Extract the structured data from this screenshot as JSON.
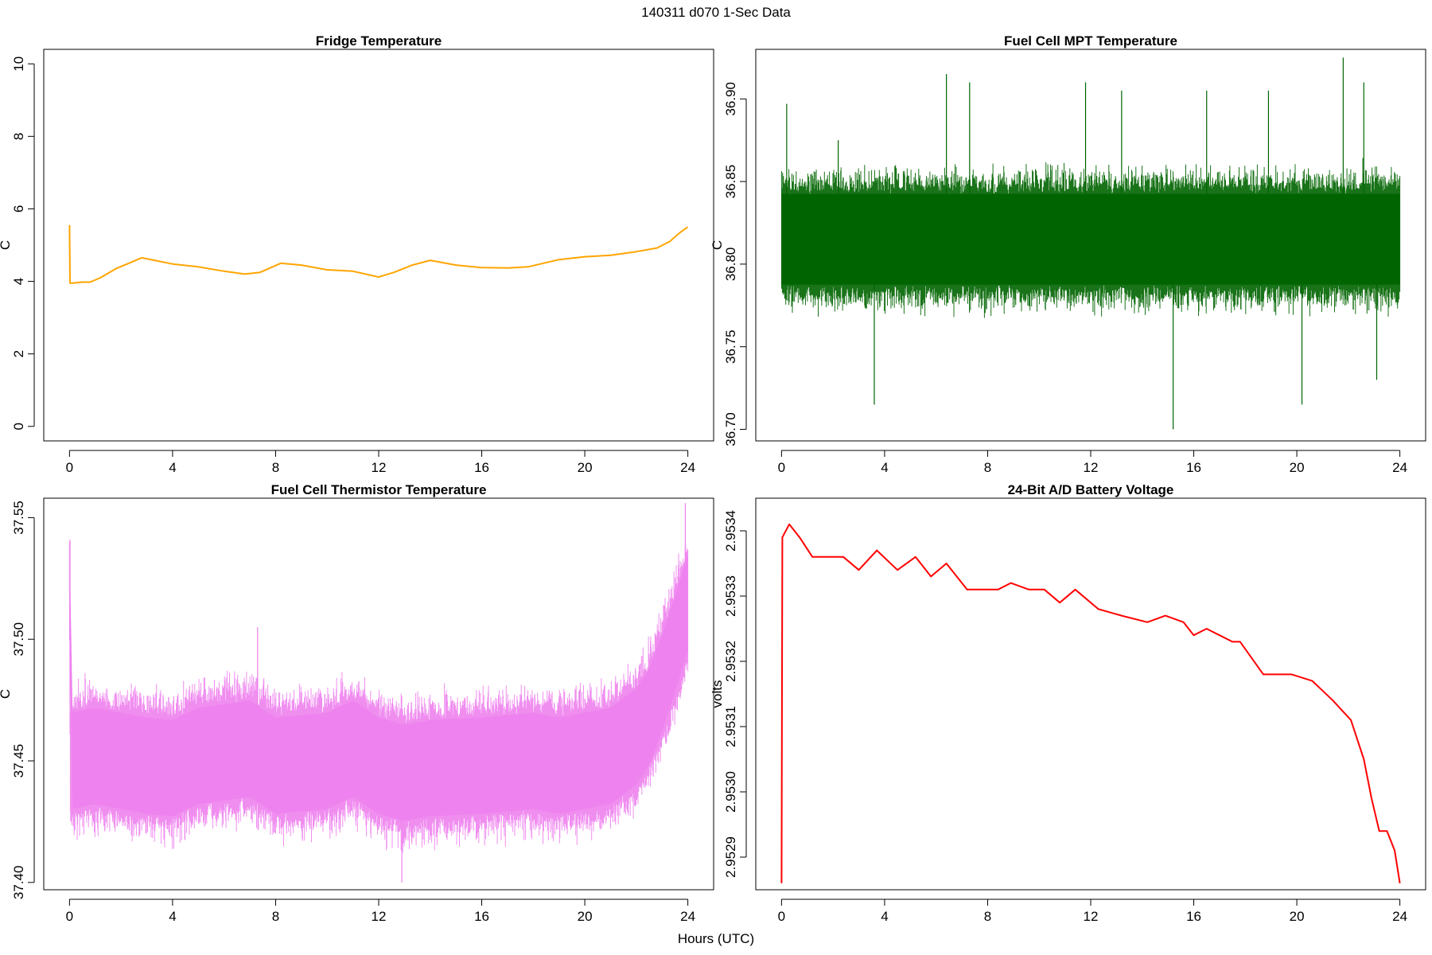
{
  "header": {
    "title": "140311   d070   1-Sec Data"
  },
  "footer": {
    "xlabel": "Hours (UTC)"
  },
  "chart_data": [
    {
      "type": "line",
      "title": "Fridge Temperature",
      "xlabel": "Hours (UTC)",
      "ylabel": "C",
      "color": "#FFA500",
      "xlim": [
        -1,
        25
      ],
      "ylim": [
        -0.4,
        10.4
      ],
      "xticks": [
        0,
        4,
        8,
        12,
        16,
        20,
        24
      ],
      "yticks": [
        0,
        2,
        4,
        6,
        8,
        10
      ],
      "ytick_labels": [
        "0",
        "2",
        "4",
        "6",
        "8",
        "10"
      ],
      "noise": 0,
      "x": [
        0,
        0.02,
        0.1,
        0.5,
        0.8,
        1.2,
        1.8,
        2.3,
        2.8,
        3.3,
        4,
        5,
        6,
        6.8,
        7.4,
        8.2,
        9,
        10,
        11,
        12,
        12.6,
        13.3,
        14,
        15,
        16,
        17,
        17.8,
        19,
        20,
        21,
        22,
        22.8,
        23.3,
        23.7,
        24
      ],
      "values": [
        5.55,
        3.95,
        3.95,
        3.98,
        3.98,
        4.1,
        4.35,
        4.5,
        4.65,
        4.58,
        4.48,
        4.4,
        4.28,
        4.2,
        4.25,
        4.5,
        4.45,
        4.32,
        4.28,
        4.12,
        4.25,
        4.45,
        4.58,
        4.45,
        4.38,
        4.37,
        4.4,
        4.6,
        4.68,
        4.72,
        4.82,
        4.92,
        5.1,
        5.35,
        5.5
      ]
    },
    {
      "type": "line",
      "title": "Fuel Cell MPT Temperature",
      "xlabel": "Hours (UTC)",
      "ylabel": "C",
      "color": "#006400",
      "xlim": [
        -1,
        25
      ],
      "ylim": [
        36.693,
        36.93
      ],
      "xticks": [
        0,
        4,
        8,
        12,
        16,
        20,
        24
      ],
      "yticks": [
        36.7,
        36.75,
        36.8,
        36.85,
        36.9
      ],
      "ytick_labels": [
        "36.70",
        "36.75",
        "36.80",
        "36.85",
        "36.90"
      ],
      "noise": 0.05,
      "x": [
        0,
        24
      ],
      "values": [
        36.815,
        36.815
      ],
      "spikes": [
        {
          "x": 0.2,
          "v": 36.897
        },
        {
          "x": 2.2,
          "v": 36.875
        },
        {
          "x": 3.6,
          "v": 36.715
        },
        {
          "x": 6.4,
          "v": 36.915
        },
        {
          "x": 7.3,
          "v": 36.91
        },
        {
          "x": 11.8,
          "v": 36.91
        },
        {
          "x": 13.2,
          "v": 36.905
        },
        {
          "x": 15.2,
          "v": 36.7
        },
        {
          "x": 16.5,
          "v": 36.905
        },
        {
          "x": 18.9,
          "v": 36.905
        },
        {
          "x": 20.2,
          "v": 36.715
        },
        {
          "x": 21.8,
          "v": 36.925
        },
        {
          "x": 22.6,
          "v": 36.91
        },
        {
          "x": 23.1,
          "v": 36.73
        }
      ]
    },
    {
      "type": "line",
      "title": "Fuel Cell Thermistor Temperature",
      "xlabel": "Hours (UTC)",
      "ylabel": "C",
      "color": "#EE82EE",
      "xlim": [
        -1,
        25
      ],
      "ylim": [
        37.397,
        37.558
      ],
      "xticks": [
        0,
        4,
        8,
        12,
        16,
        20,
        24
      ],
      "yticks": [
        37.4,
        37.45,
        37.5,
        37.55
      ],
      "ytick_labels": [
        "37.40",
        "37.45",
        "37.50",
        "37.55"
      ],
      "noise": 0.036,
      "x": [
        0,
        0.03,
        1,
        3,
        4,
        5,
        7,
        8,
        10,
        11,
        12,
        13,
        14,
        16,
        18,
        19,
        20,
        21,
        22,
        22.5,
        23,
        23.5,
        24
      ],
      "values": [
        37.52,
        37.45,
        37.452,
        37.448,
        37.447,
        37.452,
        37.455,
        37.448,
        37.45,
        37.455,
        37.448,
        37.445,
        37.447,
        37.448,
        37.45,
        37.448,
        37.45,
        37.452,
        37.46,
        37.468,
        37.482,
        37.498,
        37.515
      ],
      "spikes": [
        {
          "x": 0.02,
          "v": 37.541
        },
        {
          "x": 7.3,
          "v": 37.505
        },
        {
          "x": 12.9,
          "v": 37.4
        },
        {
          "x": 23.9,
          "v": 37.556
        }
      ]
    },
    {
      "type": "line",
      "title": "24-Bit A/D Battery Voltage",
      "xlabel": "Hours (UTC)",
      "ylabel": "volts",
      "color": "#FF0000",
      "xlim": [
        -1,
        25
      ],
      "ylim": [
        2.95285,
        2.95345
      ],
      "xticks": [
        0,
        4,
        8,
        12,
        16,
        20,
        24
      ],
      "yticks": [
        2.9529,
        2.953,
        2.9531,
        2.9532,
        2.9533,
        2.9534
      ],
      "ytick_labels": [
        "2.9529",
        "2.9530",
        "2.9531",
        "2.9532",
        "2.9533",
        "2.9534"
      ],
      "noise": 0,
      "x": [
        0,
        0.03,
        0.3,
        0.7,
        1.2,
        2,
        2.4,
        3,
        3.7,
        4.5,
        5.2,
        5.8,
        6.4,
        7.2,
        8,
        8.4,
        8.9,
        9.6,
        10.2,
        10.8,
        11.4,
        12.3,
        13.2,
        14.2,
        14.9,
        15.6,
        16,
        16.5,
        17,
        17.5,
        17.8,
        18.7,
        19.2,
        19.8,
        20.6,
        21.4,
        22.1,
        22.6,
        22.9,
        23.2,
        23.5,
        23.8,
        24
      ],
      "values": [
        2.95286,
        2.95339,
        2.95341,
        2.95339,
        2.95336,
        2.95336,
        2.95336,
        2.95334,
        2.95337,
        2.95334,
        2.95336,
        2.95333,
        2.95335,
        2.95331,
        2.95331,
        2.95331,
        2.95332,
        2.95331,
        2.95331,
        2.95329,
        2.95331,
        2.95328,
        2.95327,
        2.95326,
        2.95327,
        2.95326,
        2.95324,
        2.95325,
        2.95324,
        2.95323,
        2.95323,
        2.95318,
        2.95318,
        2.95318,
        2.95317,
        2.95314,
        2.95311,
        2.95305,
        2.95299,
        2.95294,
        2.95294,
        2.95291,
        2.95286
      ]
    }
  ]
}
